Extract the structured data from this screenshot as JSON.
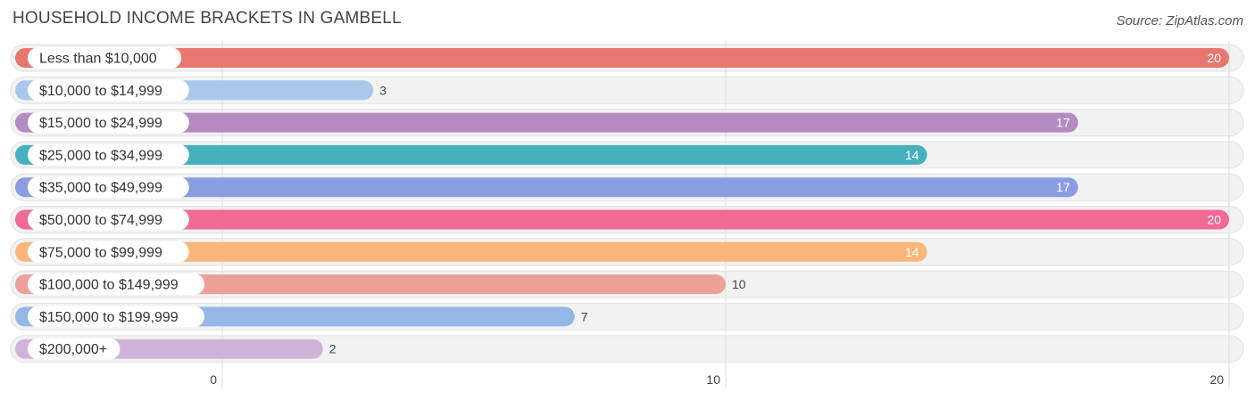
{
  "chart_data": {
    "type": "bar",
    "orientation": "horizontal",
    "title": "HOUSEHOLD INCOME BRACKETS IN GAMBELL",
    "source": "Source: ZipAtlas.com",
    "categories": [
      "Less than $10,000",
      "$10,000 to $14,999",
      "$15,000 to $24,999",
      "$25,000 to $34,999",
      "$35,000 to $49,999",
      "$50,000 to $74,999",
      "$75,000 to $99,999",
      "$100,000 to $149,999",
      "$150,000 to $199,999",
      "$200,000+"
    ],
    "values": [
      20,
      3,
      17,
      14,
      17,
      20,
      14,
      10,
      7,
      2
    ],
    "colors": [
      "#e8786f",
      "#a8c7ea",
      "#b48bc0",
      "#45b1bf",
      "#8b9de2",
      "#f06a93",
      "#fbb77b",
      "#eda09a",
      "#94b8e6",
      "#cfb3d6"
    ],
    "xlim": [
      0,
      20
    ],
    "xticks": [
      0,
      10,
      20
    ],
    "grid": true,
    "legend": "none"
  }
}
